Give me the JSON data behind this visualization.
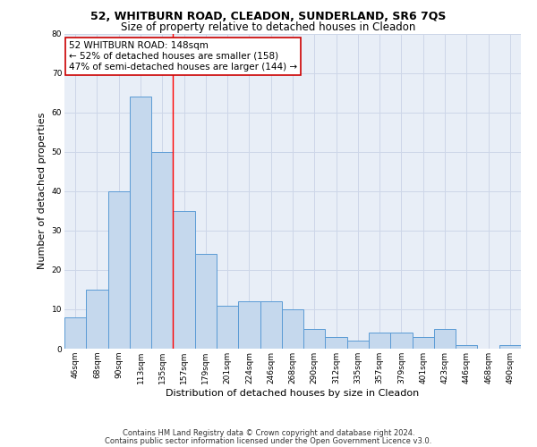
{
  "title1": "52, WHITBURN ROAD, CLEADON, SUNDERLAND, SR6 7QS",
  "title2": "Size of property relative to detached houses in Cleadon",
  "xlabel": "Distribution of detached houses by size in Cleadon",
  "ylabel": "Number of detached properties",
  "categories": [
    "46sqm",
    "68sqm",
    "90sqm",
    "113sqm",
    "135sqm",
    "157sqm",
    "179sqm",
    "201sqm",
    "224sqm",
    "246sqm",
    "268sqm",
    "290sqm",
    "312sqm",
    "335sqm",
    "357sqm",
    "379sqm",
    "401sqm",
    "423sqm",
    "446sqm",
    "468sqm",
    "490sqm"
  ],
  "values": [
    8,
    15,
    40,
    64,
    50,
    35,
    24,
    11,
    12,
    12,
    10,
    5,
    3,
    2,
    4,
    4,
    3,
    5,
    1,
    0,
    1
  ],
  "bar_color": "#c5d8ed",
  "bar_edge_color": "#5b9bd5",
  "vline_index": 4,
  "annotation_line1": "52 WHITBURN ROAD: 148sqm",
  "annotation_line2": "← 52% of detached houses are smaller (158)",
  "annotation_line3": "47% of semi-detached houses are larger (144) →",
  "annotation_box_color": "#ffffff",
  "annotation_box_edge": "#cc0000",
  "ylim": [
    0,
    80
  ],
  "yticks": [
    0,
    10,
    20,
    30,
    40,
    50,
    60,
    70,
    80
  ],
  "footer1": "Contains HM Land Registry data © Crown copyright and database right 2024.",
  "footer2": "Contains public sector information licensed under the Open Government Licence v3.0.",
  "grid_color": "#cdd6e8",
  "bg_color": "#e8eef7",
  "title1_fontsize": 9,
  "title2_fontsize": 8.5,
  "xlabel_fontsize": 8,
  "ylabel_fontsize": 8,
  "tick_fontsize": 6.5,
  "annot_fontsize": 7.5,
  "footer_fontsize": 6
}
